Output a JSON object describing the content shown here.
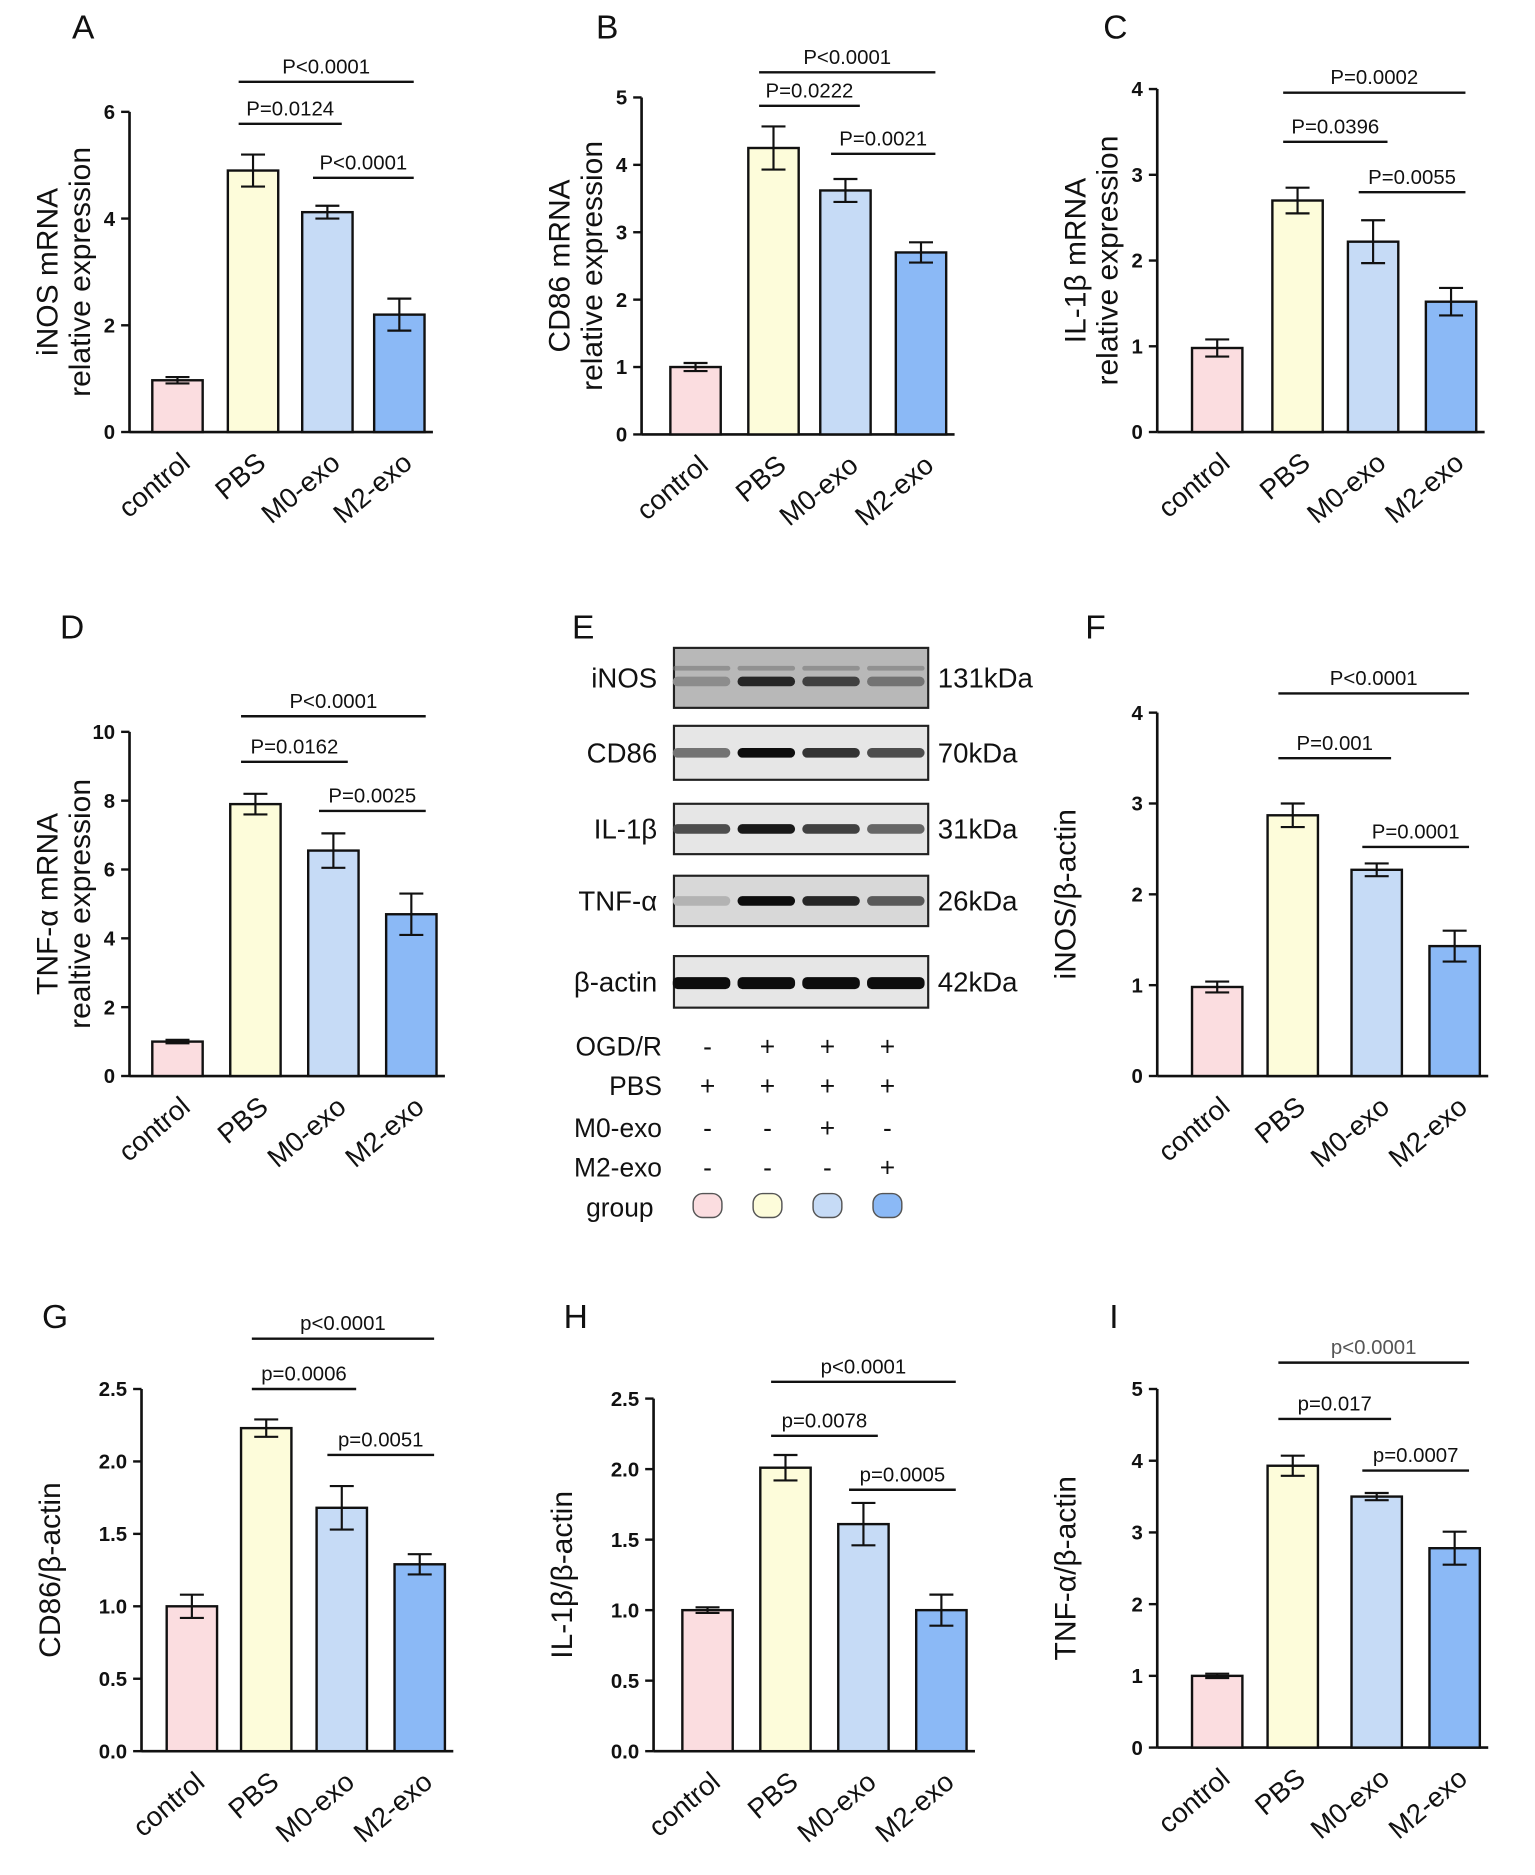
{
  "colors": {
    "control": "#fbdde0",
    "PBS": "#fdfcda",
    "M0-exo": "#c6dbf6",
    "M2-exo": "#8bb9f6",
    "text": "#111111"
  },
  "chart_data": [
    {
      "panel": "A",
      "type": "bar",
      "categories": [
        "control",
        "PBS",
        "M0-exo",
        "M2-exo"
      ],
      "values": [
        0.97,
        4.9,
        4.12,
        2.2
      ],
      "errors": [
        0.06,
        0.3,
        0.12,
        0.3
      ],
      "ylabel": [
        "iNOS mRNA",
        "relative expression"
      ],
      "ylim": [
        0,
        6
      ],
      "yticks": [
        "0",
        "2",
        "4",
        "6"
      ],
      "yticks_values": [
        0,
        2,
        4,
        6
      ],
      "comparisons": [
        {
          "from": 1,
          "to": 3,
          "label": "P<0.0001"
        },
        {
          "from": 1,
          "to": 2,
          "label": "P=0.0124"
        },
        {
          "from": 2,
          "to": 3,
          "label": "P<0.0001"
        }
      ]
    },
    {
      "panel": "B",
      "type": "bar",
      "categories": [
        "control",
        "PBS",
        "M0-exo",
        "M2-exo"
      ],
      "values": [
        1.0,
        4.25,
        3.62,
        2.7
      ],
      "errors": [
        0.06,
        0.32,
        0.17,
        0.15
      ],
      "ylabel": [
        "CD86 mRNA",
        "relative expression"
      ],
      "ylim": [
        0,
        5
      ],
      "yticks": [
        "0",
        "1",
        "2",
        "3",
        "4",
        "5"
      ],
      "yticks_values": [
        0,
        1,
        2,
        3,
        4,
        5
      ],
      "comparisons": [
        {
          "from": 1,
          "to": 3,
          "label": "P<0.0001"
        },
        {
          "from": 1,
          "to": 2,
          "label": "P=0.0222"
        },
        {
          "from": 2,
          "to": 3,
          "label": "P=0.0021"
        }
      ]
    },
    {
      "panel": "C",
      "type": "bar",
      "categories": [
        "control",
        "PBS",
        "M0-exo",
        "M2-exo"
      ],
      "values": [
        0.98,
        2.7,
        2.22,
        1.52
      ],
      "errors": [
        0.1,
        0.15,
        0.25,
        0.16
      ],
      "ylabel": [
        "IL-1β mRNA",
        "relative expression"
      ],
      "ylim": [
        0,
        4
      ],
      "yticks": [
        "0",
        "1",
        "2",
        "3",
        "4"
      ],
      "yticks_values": [
        0,
        1,
        2,
        3,
        4
      ],
      "comparisons": [
        {
          "from": 1,
          "to": 3,
          "label": "P=0.0002"
        },
        {
          "from": 1,
          "to": 2,
          "label": "P=0.0396"
        },
        {
          "from": 2,
          "to": 3,
          "label": "P=0.0055"
        }
      ]
    },
    {
      "panel": "D",
      "type": "bar",
      "categories": [
        "control",
        "PBS",
        "M0-exo",
        "M2-exo"
      ],
      "values": [
        1.0,
        7.9,
        6.55,
        4.7
      ],
      "errors": [
        0.05,
        0.3,
        0.5,
        0.6
      ],
      "ylabel": [
        "TNF-α mRNA",
        "realtive expression"
      ],
      "ylim": [
        0,
        10
      ],
      "yticks": [
        "0",
        "2",
        "4",
        "6",
        "8",
        "10"
      ],
      "yticks_values": [
        0,
        2,
        4,
        6,
        8,
        10
      ],
      "comparisons": [
        {
          "from": 1,
          "to": 3,
          "label": "P<0.0001"
        },
        {
          "from": 1,
          "to": 2,
          "label": "P=0.0162"
        },
        {
          "from": 2,
          "to": 3,
          "label": "P=0.0025"
        }
      ]
    },
    {
      "panel": "F",
      "type": "bar",
      "categories": [
        "control",
        "PBS",
        "M0-exo",
        "M2-exo"
      ],
      "values": [
        0.98,
        2.87,
        2.27,
        1.43
      ],
      "errors": [
        0.06,
        0.13,
        0.07,
        0.17
      ],
      "ylabel": [
        "iNOS/β-actin"
      ],
      "ylim": [
        0,
        4
      ],
      "yticks": [
        "0",
        "1",
        "2",
        "3",
        "4"
      ],
      "yticks_values": [
        0,
        1,
        2,
        3,
        4
      ],
      "comparisons": [
        {
          "from": 1,
          "to": 3,
          "label": "P<0.0001"
        },
        {
          "from": 1,
          "to": 2,
          "label": "P=0.001"
        },
        {
          "from": 2,
          "to": 3,
          "label": "P=0.0001"
        }
      ]
    },
    {
      "panel": "G",
      "type": "bar",
      "categories": [
        "control",
        "PBS",
        "M0-exo",
        "M2-exo"
      ],
      "values": [
        1.0,
        2.23,
        1.68,
        1.29
      ],
      "errors": [
        0.08,
        0.06,
        0.15,
        0.07
      ],
      "ylabel": [
        "CD86/β-actin"
      ],
      "ylim": [
        0,
        2.5
      ],
      "yticks": [
        "0.0",
        "0.5",
        "1.0",
        "1.5",
        "2.0",
        "2.5"
      ],
      "yticks_values": [
        0,
        0.5,
        1,
        1.5,
        2,
        2.5
      ],
      "comparisons": [
        {
          "from": 1,
          "to": 3,
          "label": "p<0.0001"
        },
        {
          "from": 1,
          "to": 2,
          "label": "p=0.0006"
        },
        {
          "from": 2,
          "to": 3,
          "label": "p=0.0051"
        }
      ]
    },
    {
      "panel": "H",
      "type": "bar",
      "categories": [
        "control",
        "PBS",
        "M0-exo",
        "M2-exo"
      ],
      "values": [
        1.0,
        2.01,
        1.61,
        1.0
      ],
      "errors": [
        0.02,
        0.09,
        0.15,
        0.11
      ],
      "ylabel": [
        "IL-1β/β-actin"
      ],
      "ylim": [
        0,
        2.5
      ],
      "yticks": [
        "0.0",
        "0.5",
        "1.0",
        "1.5",
        "2.0",
        "2.5"
      ],
      "yticks_values": [
        0,
        0.5,
        1,
        1.5,
        2,
        2.5
      ],
      "comparisons": [
        {
          "from": 1,
          "to": 3,
          "label": "p<0.0001"
        },
        {
          "from": 1,
          "to": 2,
          "label": "p=0.0078"
        },
        {
          "from": 2,
          "to": 3,
          "label": "p=0.0005"
        }
      ]
    },
    {
      "panel": "I",
      "type": "bar",
      "categories": [
        "control",
        "PBS",
        "M0-exo",
        "M2-exo"
      ],
      "values": [
        1.0,
        3.93,
        3.5,
        2.78
      ],
      "errors": [
        0.03,
        0.14,
        0.05,
        0.23
      ],
      "ylabel": [
        "TNF-α/β-actin"
      ],
      "ylim": [
        0,
        5
      ],
      "yticks": [
        "0",
        "1",
        "2",
        "3",
        "4",
        "5"
      ],
      "yticks_values": [
        0,
        1,
        2,
        3,
        4,
        5
      ],
      "comparisons": [
        {
          "from": 1,
          "to": 3,
          "label": "p<0.0001"
        },
        {
          "from": 1,
          "to": 2,
          "label": "p=0.017"
        },
        {
          "from": 2,
          "to": 3,
          "label": "p=0.0007"
        }
      ]
    }
  ],
  "blot": {
    "panel": "E",
    "rows": [
      {
        "protein": "iNOS",
        "kda": "131kDa",
        "intensity": [
          0.45,
          0.85,
          0.75,
          0.55
        ]
      },
      {
        "protein": "CD86",
        "kda": "70kDa",
        "intensity": [
          0.55,
          0.95,
          0.8,
          0.7
        ]
      },
      {
        "protein": "IL-1β",
        "kda": "31kDa",
        "intensity": [
          0.7,
          0.9,
          0.75,
          0.6
        ]
      },
      {
        "protein": "TNF-α",
        "kda": "26kDa",
        "intensity": [
          0.3,
          0.95,
          0.85,
          0.65
        ]
      },
      {
        "protein": "β-actin",
        "kda": "42kDa",
        "intensity": [
          0.95,
          0.95,
          0.95,
          0.95
        ]
      }
    ],
    "conditions": [
      {
        "label": "OGD/R",
        "signs": [
          "-",
          "+",
          "+",
          "+"
        ]
      },
      {
        "label": "PBS",
        "signs": [
          "+",
          "+",
          "+",
          "+"
        ]
      },
      {
        "label": "M0-exo",
        "signs": [
          "-",
          "-",
          "+",
          "-"
        ]
      },
      {
        "label": "M2-exo",
        "signs": [
          "-",
          "-",
          "-",
          "+"
        ]
      }
    ],
    "group_label": "group"
  }
}
